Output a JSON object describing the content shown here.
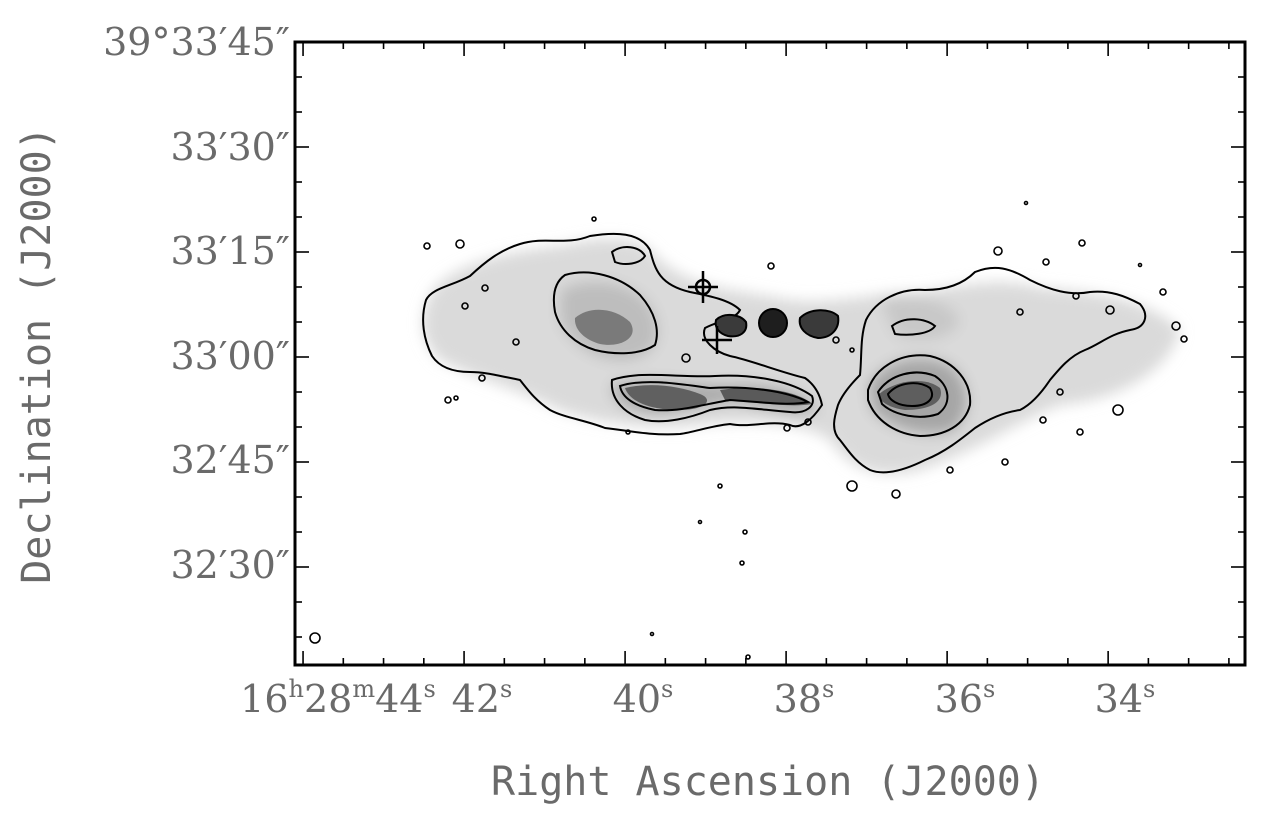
{
  "chart_data": {
    "type": "contour",
    "title": "",
    "xlabel": "Right Ascension (J2000)",
    "ylabel": "Declination (J2000)",
    "x_axis": {
      "labeled_ticks": [
        {
          "value": 44,
          "label": "16h28m44s",
          "parts": [
            "16",
            "h",
            "28",
            "m",
            "44",
            "s"
          ]
        },
        {
          "value": 42,
          "label": "42s",
          "parts": [
            "42",
            "s"
          ]
        },
        {
          "value": 40,
          "label": "40s",
          "parts": [
            "40",
            "s"
          ]
        },
        {
          "value": 38,
          "label": "38s",
          "parts": [
            "38",
            "s"
          ]
        },
        {
          "value": 36,
          "label": "36s",
          "parts": [
            "36",
            "s"
          ]
        },
        {
          "value": 34,
          "label": "34s",
          "parts": [
            "34",
            "s"
          ]
        }
      ],
      "xlim": [
        44.1,
        32.3
      ],
      "unit": "seconds of RA (16h28m)"
    },
    "y_axis": {
      "labeled_ticks": [
        {
          "value": 45,
          "label": "39°33′45″"
        },
        {
          "value": 30,
          "label": "33′30″"
        },
        {
          "value": 15,
          "label": "33′15″"
        },
        {
          "value": 0,
          "label": "33′00″"
        },
        {
          "value": -15,
          "label": "32′45″"
        },
        {
          "value": -30,
          "label": "32′30″"
        }
      ],
      "ylim": [
        -44,
        45
      ],
      "unit": "arcsec offset from 39°33′00″"
    },
    "grid": false,
    "markers": [
      {
        "kind": "cross",
        "ra_s": 39.15,
        "dec_arcsec": 10
      },
      {
        "kind": "cross",
        "ra_s": 38.95,
        "dec_arcsec": 2.5
      }
    ],
    "compact_sources": [
      {
        "ra_s": 38.8,
        "dec_arcsec": 5
      },
      {
        "ra_s": 38.25,
        "dec_arcsec": 4.5
      },
      {
        "ra_s": 37.7,
        "dec_arcsec": 5
      }
    ],
    "regions": [
      {
        "name": "eastern lobe",
        "ra_range": [
          42.6,
          37.9
        ],
        "dec_range": [
          -10,
          17
        ]
      },
      {
        "name": "western lobe",
        "ra_range": [
          37.4,
          33.2
        ],
        "dec_range": [
          -20,
          13
        ]
      }
    ],
    "beam": {
      "ra_s": 43.9,
      "dec_arcsec": -40
    }
  }
}
